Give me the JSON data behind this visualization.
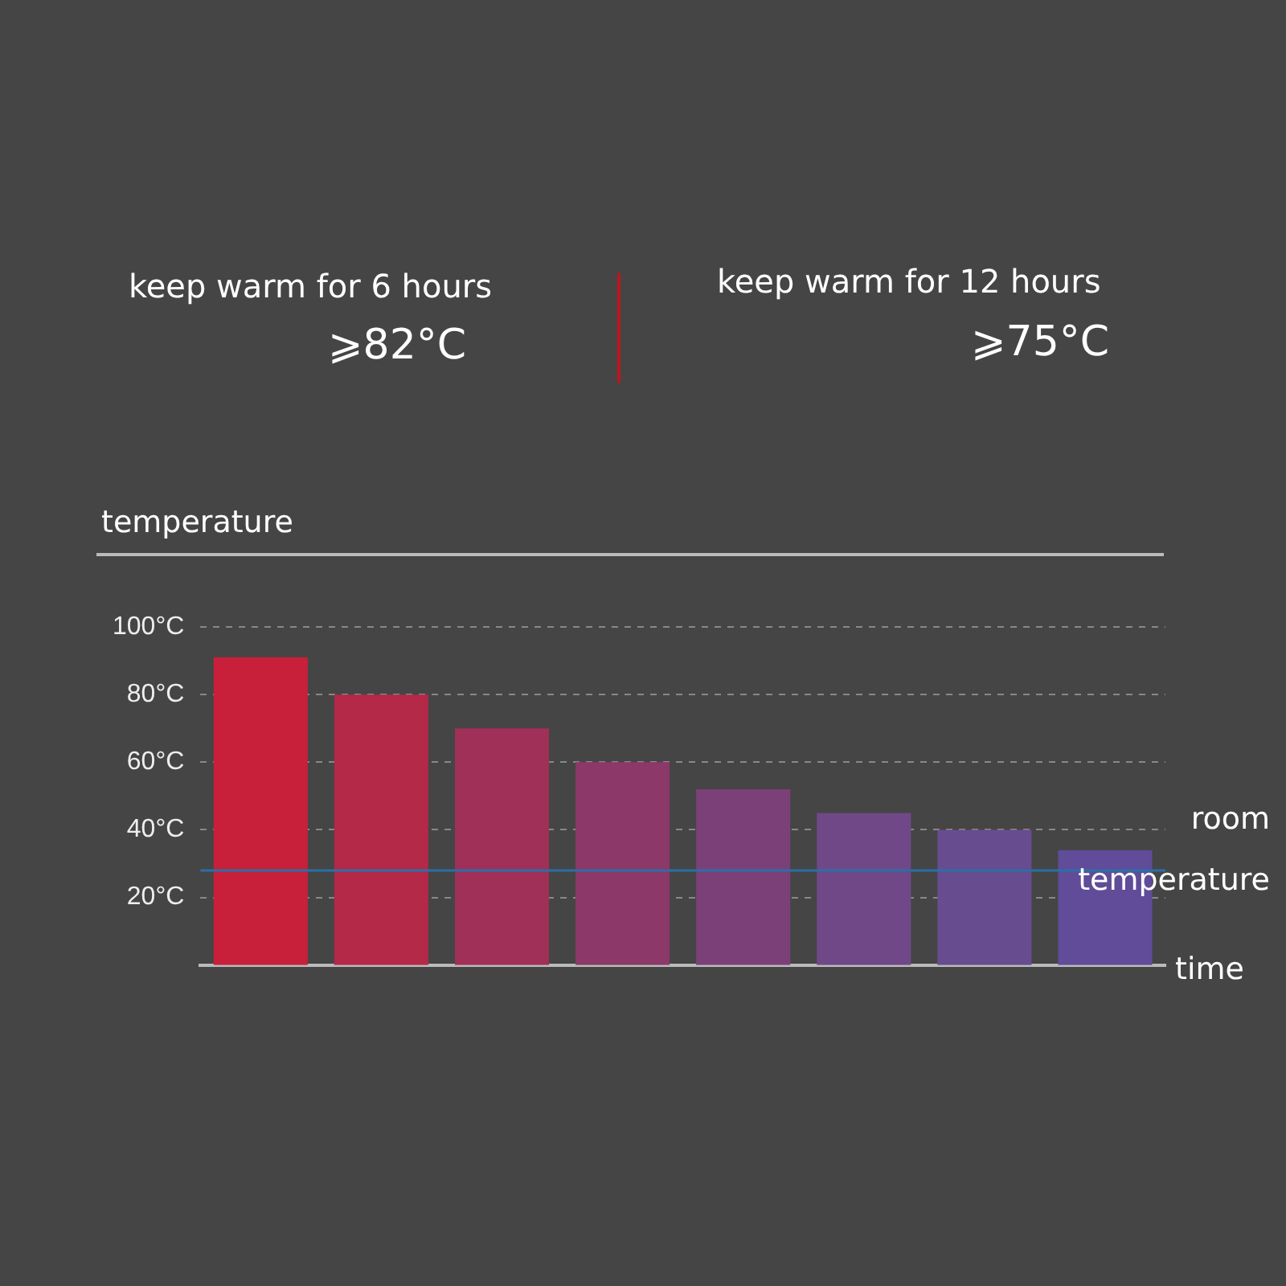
{
  "chart_data": {
    "type": "bar",
    "ylabel": "temperature",
    "xlabel": "time",
    "categories": [
      null,
      null,
      null,
      null,
      null,
      null,
      null,
      null
    ],
    "values": [
      91,
      80,
      70,
      60,
      52,
      45,
      40,
      34
    ],
    "colors": [
      "#c8203a",
      "#b42848",
      "#a03058",
      "#8c3868",
      "#7c4078",
      "#704888",
      "#684c90",
      "#604c98"
    ],
    "ylim": [
      0,
      100
    ],
    "yticks": [
      {
        "value": 20,
        "label": "20°C"
      },
      {
        "value": 40,
        "label": "40°C"
      },
      {
        "value": 60,
        "label": "60°C"
      },
      {
        "value": 80,
        "label": "80°C"
      },
      {
        "value": 100,
        "label": "100°C"
      }
    ],
    "grid": "y",
    "legend": false,
    "ref_lines": [
      {
        "axis": "y",
        "value": 28,
        "label": "room temperature",
        "color": "#2a6fa8"
      }
    ],
    "annotations": [
      "keep warm for 6 hours",
      "⩾82°C",
      "keep warm for 12 hours",
      "⩾75°C"
    ]
  }
}
